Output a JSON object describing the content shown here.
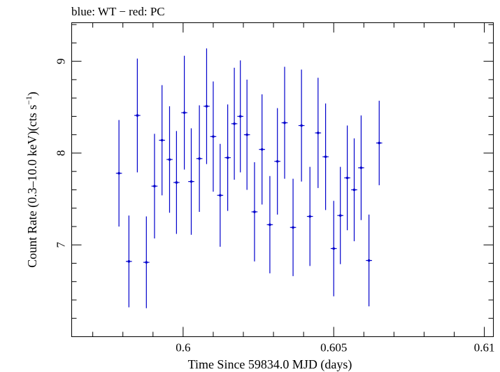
{
  "chart_data": {
    "type": "scatter",
    "title": "blue: WT − red: PC",
    "xlabel": "Time Since 59834.0 MJD (days)",
    "ylabel_main": "Count Rate (0.3–10.0 keV)(cts s",
    "ylabel_sup": "−1",
    "ylabel_close": ")",
    "xlim": [
      0.5963,
      0.6103
    ],
    "ylim": [
      6.0,
      9.42
    ],
    "x_ticks": [
      {
        "value": 0.6,
        "label": "0.6"
      },
      {
        "value": 0.605,
        "label": "0.605"
      },
      {
        "value": 0.61,
        "label": "0.61"
      }
    ],
    "y_ticks": [
      {
        "value": 7,
        "label": "7"
      },
      {
        "value": 8,
        "label": "8"
      },
      {
        "value": 9,
        "label": "9"
      }
    ],
    "series": [
      {
        "color": "#0000cc",
        "x_halfwidth": 0.0001,
        "points": [
          {
            "x": 0.59787,
            "y": 7.78,
            "err": 0.58
          },
          {
            "x": 0.5982,
            "y": 6.82,
            "err": 0.5
          },
          {
            "x": 0.59848,
            "y": 8.41,
            "err": 0.62
          },
          {
            "x": 0.59878,
            "y": 6.81,
            "err": 0.5
          },
          {
            "x": 0.59905,
            "y": 7.64,
            "err": 0.57
          },
          {
            "x": 0.5993,
            "y": 8.14,
            "err": 0.6
          },
          {
            "x": 0.59955,
            "y": 7.93,
            "err": 0.58
          },
          {
            "x": 0.59978,
            "y": 7.68,
            "err": 0.56
          },
          {
            "x": 0.60004,
            "y": 8.44,
            "err": 0.62
          },
          {
            "x": 0.60027,
            "y": 7.69,
            "err": 0.58
          },
          {
            "x": 0.60054,
            "y": 7.94,
            "err": 0.58
          },
          {
            "x": 0.60078,
            "y": 8.51,
            "err": 0.63
          },
          {
            "x": 0.601,
            "y": 8.18,
            "err": 0.6
          },
          {
            "x": 0.60123,
            "y": 7.54,
            "err": 0.56
          },
          {
            "x": 0.60148,
            "y": 7.95,
            "err": 0.58
          },
          {
            "x": 0.6017,
            "y": 8.32,
            "err": 0.61
          },
          {
            "x": 0.6019,
            "y": 8.4,
            "err": 0.61
          },
          {
            "x": 0.60212,
            "y": 8.2,
            "err": 0.6
          },
          {
            "x": 0.60237,
            "y": 7.36,
            "err": 0.54
          },
          {
            "x": 0.60262,
            "y": 8.04,
            "err": 0.6
          },
          {
            "x": 0.60288,
            "y": 7.22,
            "err": 0.53
          },
          {
            "x": 0.60313,
            "y": 7.91,
            "err": 0.58
          },
          {
            "x": 0.60337,
            "y": 8.33,
            "err": 0.61
          },
          {
            "x": 0.60365,
            "y": 7.19,
            "err": 0.53
          },
          {
            "x": 0.60393,
            "y": 8.3,
            "err": 0.61
          },
          {
            "x": 0.60421,
            "y": 7.31,
            "err": 0.54
          },
          {
            "x": 0.60448,
            "y": 8.22,
            "err": 0.6
          },
          {
            "x": 0.60473,
            "y": 7.96,
            "err": 0.58
          },
          {
            "x": 0.605,
            "y": 6.96,
            "err": 0.52
          },
          {
            "x": 0.60522,
            "y": 7.32,
            "err": 0.53
          },
          {
            "x": 0.60545,
            "y": 7.73,
            "err": 0.57
          },
          {
            "x": 0.60568,
            "y": 7.6,
            "err": 0.56
          },
          {
            "x": 0.60591,
            "y": 7.84,
            "err": 0.57
          },
          {
            "x": 0.60617,
            "y": 6.83,
            "err": 0.5
          },
          {
            "x": 0.60651,
            "y": 8.11,
            "err": 0.46
          }
        ]
      }
    ],
    "grid": false,
    "legend": "none"
  }
}
